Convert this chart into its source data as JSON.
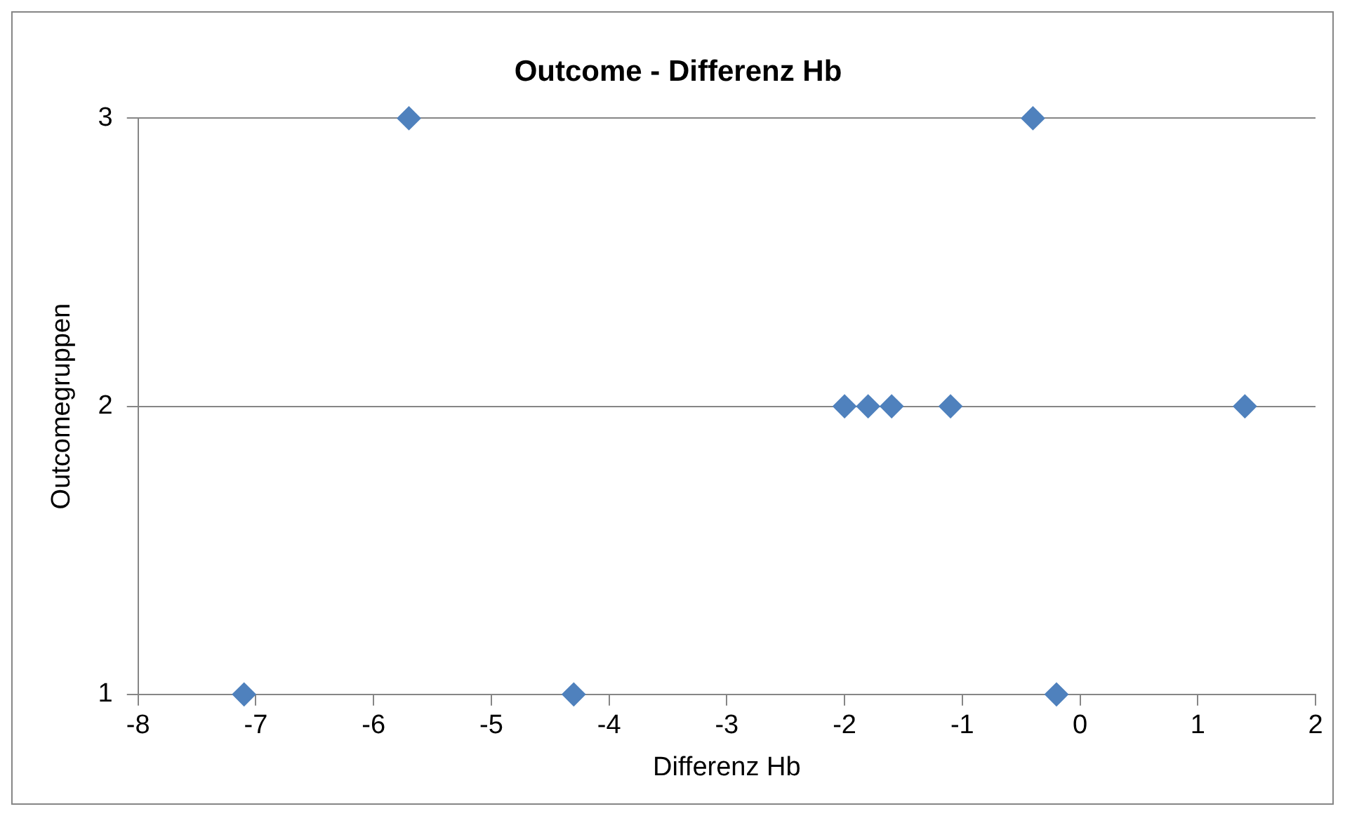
{
  "chart_data": {
    "type": "scatter",
    "title": "Outcome - Differenz Hb",
    "xlabel": "Differenz Hb",
    "ylabel": "Outcomegruppen",
    "x": [
      -7.1,
      -4.3,
      -0.2,
      -5.7,
      -0.4,
      -2.0,
      -1.8,
      -1.6,
      -1.1,
      1.4
    ],
    "values": [
      1,
      1,
      1,
      3,
      3,
      2,
      2,
      2,
      2,
      2
    ],
    "color": "#4f81bd",
    "marker": "diamond",
    "xlim": [
      -8,
      2
    ],
    "xticks": [
      -8,
      -7,
      -6,
      -5,
      -4,
      -3,
      -2,
      -1,
      0,
      1,
      2
    ],
    "ylim": [
      1,
      3
    ],
    "yticks": [
      1,
      2,
      3
    ],
    "grid": "y",
    "legend": false
  }
}
